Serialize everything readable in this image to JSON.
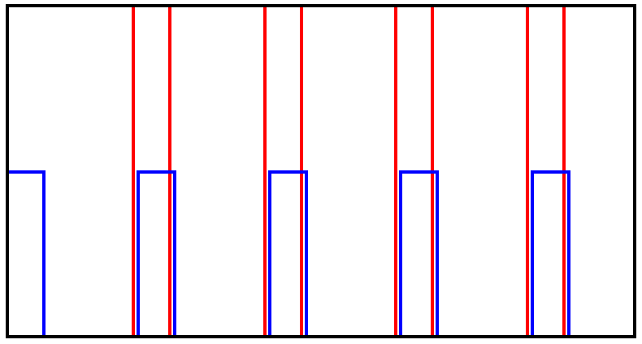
{
  "diagram": {
    "colors": {
      "frame": "#000000",
      "red_series": "#ff0000",
      "blue_series": "#0000ff",
      "background": "#ffffff"
    },
    "red_pulse_count": 4,
    "blue_pulse_count": 5
  }
}
